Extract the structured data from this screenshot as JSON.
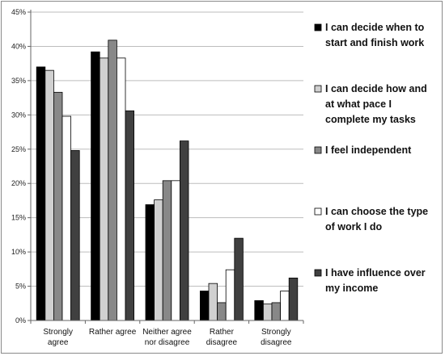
{
  "chart_data": {
    "type": "bar",
    "categories": [
      [
        "Strongly",
        "agree"
      ],
      [
        "Rather agree"
      ],
      [
        "Neither agree",
        "nor disagree"
      ],
      [
        "Rather",
        "disagree"
      ],
      [
        "Strongly",
        "disagree"
      ]
    ],
    "series": [
      {
        "name": [
          "I can decide when to",
          "start and finish work"
        ],
        "color": "#000000",
        "values": [
          37.0,
          39.2,
          16.9,
          4.3,
          2.9
        ]
      },
      {
        "name": [
          "I can decide how and",
          "at what pace I",
          "complete my tasks"
        ],
        "color": "#d0d0d0",
        "values": [
          36.5,
          38.3,
          17.6,
          5.4,
          2.4
        ]
      },
      {
        "name": [
          "I feel independent"
        ],
        "color": "#888888",
        "values": [
          33.3,
          40.9,
          20.4,
          2.6,
          2.6
        ]
      },
      {
        "name": [
          "I can choose the type",
          "of work I do"
        ],
        "color": "#ffffff",
        "values": [
          29.8,
          38.3,
          20.4,
          7.4,
          4.3
        ]
      },
      {
        "name": [
          "I have influence over",
          "my income"
        ],
        "color": "#404040",
        "values": [
          24.8,
          30.6,
          26.2,
          12.0,
          6.2
        ]
      }
    ],
    "yticks": [
      "0%",
      "5%",
      "10%",
      "15%",
      "20%",
      "25%",
      "30%",
      "35%",
      "40%",
      "45%"
    ],
    "ylim": [
      0,
      45
    ],
    "grid": true,
    "legend_position": "right"
  }
}
